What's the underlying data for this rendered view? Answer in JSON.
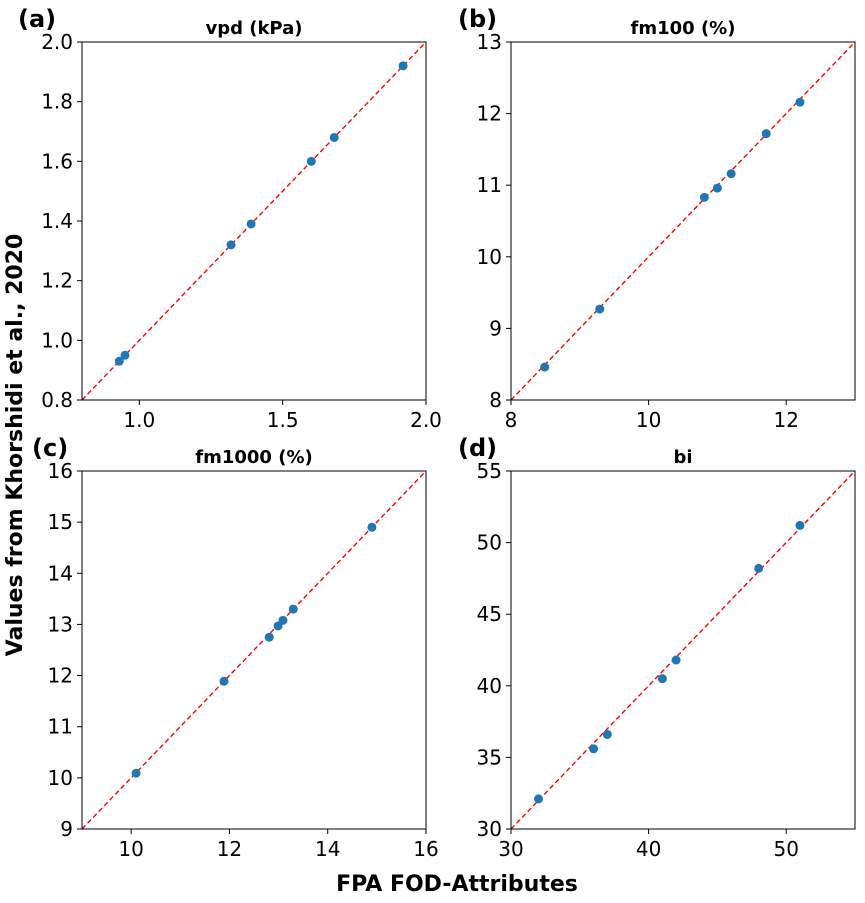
{
  "chart_data": {
    "type": "scatter",
    "xlabel": "FPA FOD-Attributes",
    "ylabel": "Values from Khorshidi et al., 2020",
    "colors": {
      "points": "#1f77b4",
      "identity_line": "#ff0000"
    },
    "panels": [
      {
        "label": "(a)",
        "title": "vpd (kPa)",
        "xlim": [
          0.8,
          2.0
        ],
        "ylim": [
          0.8,
          2.0
        ],
        "xticks": [
          1.0,
          1.5,
          2.0
        ],
        "xtick_labels": [
          "1.0",
          "1.5",
          "2.0"
        ],
        "yticks": [
          0.8,
          1.0,
          1.2,
          1.4,
          1.6,
          1.8,
          2.0
        ],
        "ytick_labels": [
          "0.8",
          "1.0",
          "1.2",
          "1.4",
          "1.6",
          "1.8",
          "2.0"
        ],
        "x": [
          0.93,
          0.95,
          1.32,
          1.39,
          1.6,
          1.68,
          1.92
        ],
        "y": [
          0.93,
          0.95,
          1.32,
          1.39,
          1.6,
          1.68,
          1.92
        ]
      },
      {
        "label": "(b)",
        "title": "fm100 (%)",
        "xlim": [
          8,
          13
        ],
        "ylim": [
          8,
          13
        ],
        "xticks": [
          8,
          10,
          12
        ],
        "xtick_labels": [
          "8",
          "10",
          "12"
        ],
        "yticks": [
          8,
          9,
          10,
          11,
          12,
          13
        ],
        "ytick_labels": [
          "8",
          "9",
          "10",
          "11",
          "12",
          "13"
        ],
        "x": [
          8.49,
          9.29,
          10.81,
          11.0,
          11.2,
          11.71,
          12.2
        ],
        "y": [
          8.46,
          9.27,
          10.83,
          10.96,
          11.16,
          11.72,
          12.16
        ]
      },
      {
        "label": "(c)",
        "title": "fm1000 (%)",
        "xlim": [
          9,
          16
        ],
        "ylim": [
          9,
          16
        ],
        "xticks": [
          10,
          12,
          14,
          16
        ],
        "xtick_labels": [
          "10",
          "12",
          "14",
          "16"
        ],
        "yticks": [
          9,
          10,
          11,
          12,
          13,
          14,
          15,
          16
        ],
        "ytick_labels": [
          "9",
          "10",
          "11",
          "12",
          "13",
          "14",
          "15",
          "16"
        ],
        "x": [
          10.1,
          11.89,
          12.81,
          12.99,
          13.09,
          13.3,
          14.9
        ],
        "y": [
          10.09,
          11.89,
          12.75,
          12.97,
          13.08,
          13.3,
          14.9
        ]
      },
      {
        "label": "(d)",
        "title": "bi",
        "xlim": [
          30,
          55
        ],
        "ylim": [
          30,
          55
        ],
        "xticks": [
          30,
          40,
          50
        ],
        "xtick_labels": [
          "30",
          "40",
          "50"
        ],
        "yticks": [
          30,
          35,
          40,
          45,
          50,
          55
        ],
        "ytick_labels": [
          "30",
          "35",
          "40",
          "45",
          "50",
          "55"
        ],
        "x": [
          32.0,
          36.0,
          37.0,
          41.0,
          42.0,
          48.0,
          51.0
        ],
        "y": [
          32.1,
          35.6,
          36.6,
          40.5,
          41.8,
          48.2,
          51.2
        ]
      }
    ]
  }
}
